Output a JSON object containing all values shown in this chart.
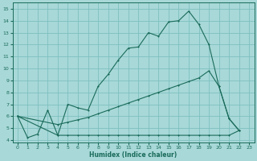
{
  "xlabel": "Humidex (Indice chaleur)",
  "bg_color": "#a8d8d8",
  "grid_color": "#7fbfbf",
  "line_color": "#1a6b5a",
  "xlim": [
    -0.5,
    23.5
  ],
  "ylim": [
    3.8,
    15.5
  ],
  "yticks": [
    4,
    5,
    6,
    7,
    8,
    9,
    10,
    11,
    12,
    13,
    14,
    15
  ],
  "xticks": [
    0,
    1,
    2,
    3,
    4,
    5,
    6,
    7,
    8,
    9,
    10,
    11,
    12,
    13,
    14,
    15,
    16,
    17,
    18,
    19,
    20,
    21,
    22,
    23
  ],
  "line1_x": [
    0,
    1,
    2,
    3,
    4,
    5,
    6,
    7,
    8,
    9,
    10,
    11,
    12,
    13,
    14,
    15,
    16,
    17,
    18,
    19,
    20,
    21,
    22
  ],
  "line1_y": [
    6.0,
    4.2,
    4.5,
    6.5,
    4.4,
    7.0,
    6.7,
    6.5,
    8.5,
    9.5,
    10.7,
    11.7,
    11.8,
    13.0,
    12.7,
    13.9,
    14.0,
    14.8,
    13.7,
    12.0,
    8.5,
    5.8,
    4.8
  ],
  "line2_x": [
    0,
    4,
    5,
    6,
    7,
    8,
    9,
    10,
    11,
    12,
    13,
    14,
    15,
    16,
    17,
    18,
    19,
    20,
    21,
    22
  ],
  "line2_y": [
    6.0,
    5.3,
    5.5,
    5.7,
    5.9,
    6.2,
    6.5,
    6.8,
    7.1,
    7.4,
    7.7,
    8.0,
    8.3,
    8.6,
    8.9,
    9.2,
    9.8,
    8.5,
    5.8,
    4.8
  ],
  "line3_x": [
    0,
    4,
    5,
    6,
    7,
    8,
    9,
    10,
    11,
    12,
    13,
    14,
    15,
    16,
    17,
    18,
    19,
    20,
    21,
    22
  ],
  "line3_y": [
    6.0,
    4.4,
    4.4,
    4.4,
    4.4,
    4.4,
    4.4,
    4.4,
    4.4,
    4.4,
    4.4,
    4.4,
    4.4,
    4.4,
    4.4,
    4.4,
    4.4,
    4.4,
    4.4,
    4.8
  ]
}
